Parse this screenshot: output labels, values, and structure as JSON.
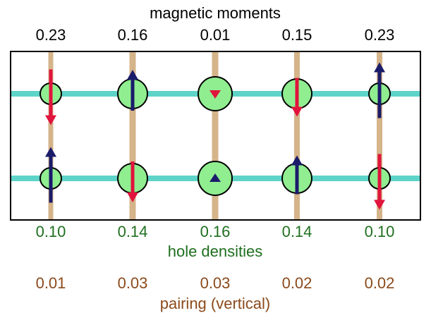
{
  "title": "magnetic moments",
  "moments": [
    "0.23",
    "0.16",
    "0.01",
    "0.15",
    "0.23"
  ],
  "hole_densities": [
    "0.10",
    "0.14",
    "0.16",
    "0.14",
    "0.10"
  ],
  "hole_label": "hole densities",
  "pairing": [
    "0.01",
    "0.03",
    "0.03",
    "0.02",
    "0.02"
  ],
  "pairing_label": "pairing (vertical)"
}
